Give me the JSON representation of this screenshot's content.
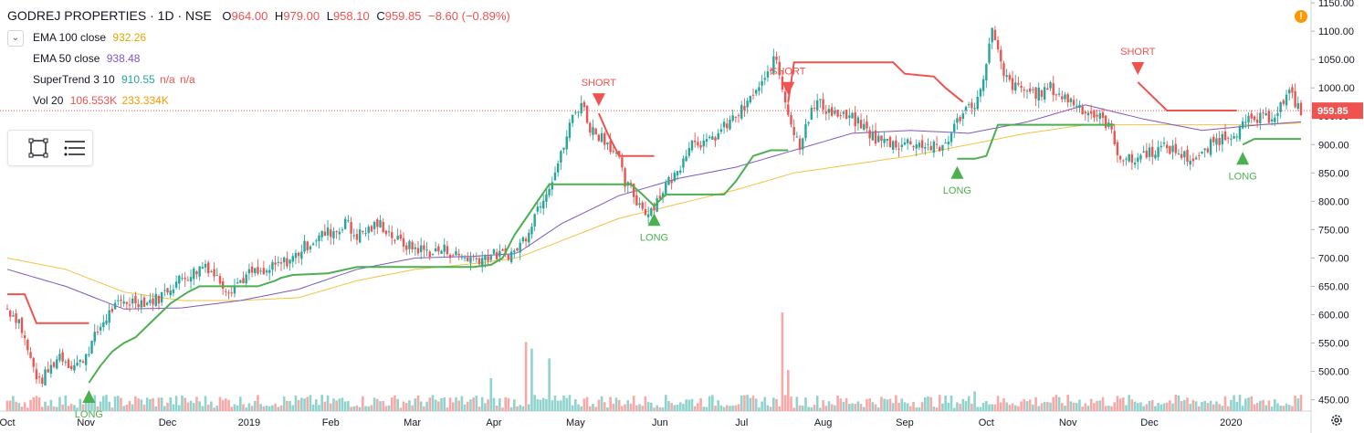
{
  "header": {
    "symbol": "GODREJ PROPERTIES · 1D · NSE",
    "open_label": "O",
    "open": "964.00",
    "high_label": "H",
    "high": "979.00",
    "low_label": "L",
    "low": "958.10",
    "close_label": "C",
    "close": "959.85",
    "change": "−8.60 (−0.89%)"
  },
  "indicators": [
    {
      "name": "EMA 100 close",
      "value": "932.26",
      "color": "#f5c242"
    },
    {
      "name": "EMA 50 close",
      "value": "938.48",
      "color": "#7e57c2"
    },
    {
      "name": "SuperTrend 3 10",
      "value": "910.55",
      "value2": "n/a",
      "value3": "n/a",
      "color": "#26a69a",
      "color2": "#ef5350"
    },
    {
      "name": "Vol 20",
      "value": "106.553K",
      "value2": "233.334K",
      "color": "#ef5350",
      "color2": "#ff9800"
    }
  ],
  "colors": {
    "up": "#26a69a",
    "down": "#ef5350",
    "vol_up": "#8fd3cc",
    "vol_down": "#f6a9a7",
    "st_up": "#4caf50",
    "st_down": "#ef5350",
    "ema100": "#f5c242",
    "ema50": "#7e57c2"
  },
  "icons": {
    "collapse": "chevron-down-icon",
    "tool1": "rectangle-select-icon",
    "tool2": "list-menu-icon",
    "warning": "warning-icon",
    "settings": "gear-icon"
  },
  "chart_data": {
    "type": "candlestick",
    "y_axis": {
      "ticks": [
        "1150.00",
        "1100.00",
        "1050.00",
        "1000.00",
        "950.00",
        "900.00",
        "850.00",
        "800.00",
        "750.00",
        "700.00",
        "650.00",
        "600.00",
        "550.00",
        "500.00",
        "450.00"
      ],
      "min": 430,
      "max": 1155
    },
    "last_price": "959.85",
    "x_axis": {
      "labels": [
        "Oct",
        "Nov",
        "Dec",
        "2019",
        "Feb",
        "Mar",
        "Apr",
        "May",
        "Jun",
        "Jul",
        "Aug",
        "Sep",
        "Oct",
        "Nov",
        "Dec",
        "2020"
      ]
    },
    "close_path": [
      [
        0,
        610
      ],
      [
        4,
        590
      ],
      [
        8,
        520
      ],
      [
        11,
        480
      ],
      [
        14,
        500
      ],
      [
        18,
        530
      ],
      [
        22,
        510
      ],
      [
        25,
        515
      ],
      [
        28,
        540
      ],
      [
        32,
        580
      ],
      [
        36,
        610
      ],
      [
        40,
        622
      ],
      [
        44,
        625
      ],
      [
        48,
        622
      ],
      [
        52,
        630
      ],
      [
        56,
        650
      ],
      [
        60,
        665
      ],
      [
        64,
        675
      ],
      [
        68,
        690
      ],
      [
        72,
        665
      ],
      [
        76,
        645
      ],
      [
        80,
        660
      ],
      [
        84,
        675
      ],
      [
        88,
        670
      ],
      [
        90,
        680
      ],
      [
        94,
        690
      ],
      [
        98,
        700
      ],
      [
        102,
        720
      ],
      [
        106,
        735
      ],
      [
        110,
        745
      ],
      [
        114,
        750
      ],
      [
        116,
        770
      ],
      [
        118,
        745
      ],
      [
        120,
        740
      ],
      [
        124,
        750
      ],
      [
        128,
        760
      ],
      [
        130,
        750
      ],
      [
        134,
        730
      ],
      [
        138,
        720
      ],
      [
        142,
        715
      ],
      [
        146,
        710
      ],
      [
        150,
        715
      ],
      [
        154,
        705
      ],
      [
        158,
        700
      ],
      [
        162,
        700
      ],
      [
        166,
        705
      ],
      [
        170,
        705
      ],
      [
        174,
        710
      ],
      [
        178,
        740
      ],
      [
        182,
        790
      ],
      [
        186,
        830
      ],
      [
        190,
        880
      ],
      [
        194,
        950
      ],
      [
        197,
        975
      ],
      [
        200,
        930
      ],
      [
        202,
        920
      ],
      [
        204,
        915
      ],
      [
        206,
        905
      ],
      [
        208,
        890
      ],
      [
        210,
        870
      ],
      [
        212,
        830
      ],
      [
        214,
        820
      ],
      [
        216,
        800
      ],
      [
        218,
        790
      ],
      [
        220,
        780
      ],
      [
        222,
        795
      ],
      [
        224,
        810
      ],
      [
        226,
        830
      ],
      [
        228,
        840
      ],
      [
        230,
        850
      ],
      [
        232,
        880
      ],
      [
        234,
        900
      ],
      [
        236,
        910
      ],
      [
        240,
        900
      ],
      [
        244,
        920
      ],
      [
        248,
        940
      ],
      [
        252,
        960
      ],
      [
        254,
        970
      ],
      [
        256,
        990
      ],
      [
        258,
        1000
      ],
      [
        260,
        1010
      ],
      [
        262,
        1040
      ],
      [
        264,
        1050
      ],
      [
        266,
        1000
      ],
      [
        268,
        960
      ],
      [
        270,
        920
      ],
      [
        272,
        900
      ],
      [
        274,
        940
      ],
      [
        278,
        975
      ],
      [
        282,
        960
      ],
      [
        286,
        950
      ],
      [
        290,
        945
      ],
      [
        294,
        930
      ],
      [
        298,
        910
      ],
      [
        302,
        905
      ],
      [
        306,
        900
      ],
      [
        310,
        905
      ],
      [
        314,
        900
      ],
      [
        318,
        895
      ],
      [
        320,
        890
      ],
      [
        324,
        920
      ],
      [
        328,
        960
      ],
      [
        332,
        975
      ],
      [
        334,
        990
      ],
      [
        336,
        1050
      ],
      [
        338,
        1100
      ],
      [
        340,
        1060
      ],
      [
        342,
        1020
      ],
      [
        346,
        1000
      ],
      [
        350,
        995
      ],
      [
        354,
        990
      ],
      [
        358,
        1000
      ],
      [
        362,
        985
      ],
      [
        366,
        975
      ],
      [
        370,
        960
      ],
      [
        374,
        950
      ],
      [
        378,
        935
      ],
      [
        380,
        900
      ],
      [
        382,
        880
      ],
      [
        386,
        870
      ],
      [
        390,
        885
      ],
      [
        394,
        890
      ],
      [
        398,
        895
      ],
      [
        402,
        885
      ],
      [
        406,
        875
      ],
      [
        410,
        880
      ],
      [
        414,
        905
      ],
      [
        418,
        915
      ],
      [
        422,
        925
      ],
      [
        426,
        940
      ],
      [
        430,
        945
      ],
      [
        434,
        950
      ],
      [
        438,
        975
      ],
      [
        440,
        990
      ],
      [
        442,
        975
      ],
      [
        444,
        960
      ]
    ],
    "ema100_path": [
      [
        0,
        700
      ],
      [
        20,
        680
      ],
      [
        40,
        640
      ],
      [
        60,
        625
      ],
      [
        80,
        625
      ],
      [
        100,
        630
      ],
      [
        120,
        660
      ],
      [
        140,
        680
      ],
      [
        160,
        690
      ],
      [
        175,
        700
      ],
      [
        190,
        730
      ],
      [
        210,
        770
      ],
      [
        230,
        795
      ],
      [
        250,
        820
      ],
      [
        270,
        850
      ],
      [
        290,
        865
      ],
      [
        310,
        880
      ],
      [
        330,
        900
      ],
      [
        350,
        920
      ],
      [
        370,
        935
      ],
      [
        390,
        935
      ],
      [
        410,
        935
      ],
      [
        430,
        935
      ],
      [
        444,
        938
      ]
    ],
    "ema50_path": [
      [
        0,
        680
      ],
      [
        20,
        650
      ],
      [
        40,
        610
      ],
      [
        60,
        612
      ],
      [
        80,
        625
      ],
      [
        100,
        645
      ],
      [
        120,
        680
      ],
      [
        140,
        700
      ],
      [
        160,
        703
      ],
      [
        175,
        708
      ],
      [
        190,
        760
      ],
      [
        210,
        810
      ],
      [
        230,
        840
      ],
      [
        250,
        860
      ],
      [
        270,
        890
      ],
      [
        290,
        920
      ],
      [
        310,
        925
      ],
      [
        330,
        920
      ],
      [
        350,
        940
      ],
      [
        370,
        970
      ],
      [
        390,
        945
      ],
      [
        410,
        925
      ],
      [
        430,
        935
      ],
      [
        444,
        940
      ]
    ],
    "supertrend_up_segments": [
      [
        [
          28,
          480
        ],
        [
          32,
          510
        ],
        [
          36,
          535
        ],
        [
          40,
          550
        ],
        [
          44,
          560
        ],
        [
          48,
          580
        ],
        [
          52,
          600
        ],
        [
          56,
          620
        ],
        [
          62,
          640
        ],
        [
          66,
          650
        ],
        [
          76,
          650
        ],
        [
          86,
          650
        ],
        [
          92,
          660
        ],
        [
          94,
          665
        ],
        [
          98,
          670
        ],
        [
          110,
          673
        ],
        [
          120,
          684
        ],
        [
          160,
          684
        ],
        [
          166,
          688
        ],
        [
          170,
          700
        ],
        [
          174,
          740
        ],
        [
          178,
          770
        ],
        [
          182,
          800
        ],
        [
          186,
          830
        ],
        [
          214,
          830
        ],
        [
          218,
          812
        ],
        [
          222,
          792
        ],
        [
          226,
          812
        ],
        [
          246,
          812
        ],
        [
          250,
          835
        ],
        [
          256,
          880
        ],
        [
          262,
          890
        ],
        [
          268,
          890
        ]
      ],
      [
        [
          326,
          875
        ],
        [
          332,
          875
        ],
        [
          336,
          880
        ],
        [
          340,
          935
        ],
        [
          380,
          935
        ]
      ],
      [
        [
          424,
          900
        ],
        [
          428,
          910
        ],
        [
          444,
          910
        ]
      ]
    ],
    "supertrend_down_segments": [
      [
        [
          0,
          636
        ],
        [
          6,
          636
        ],
        [
          10,
          585
        ],
        [
          28,
          585
        ]
      ],
      [
        [
          203,
          955
        ],
        [
          206,
          920
        ],
        [
          210,
          880
        ],
        [
          222,
          880
        ]
      ],
      [
        [
          268,
          975
        ],
        [
          270,
          1045
        ],
        [
          304,
          1045
        ],
        [
          308,
          1025
        ],
        [
          318,
          1020
        ],
        [
          322,
          1000
        ],
        [
          328,
          975
        ]
      ],
      [
        [
          388,
          1010
        ],
        [
          390,
          1000
        ],
        [
          398,
          960
        ],
        [
          422,
          960
        ]
      ]
    ],
    "signals": [
      {
        "label": "LONG",
        "x": 28,
        "y": 480,
        "dir": "up"
      },
      {
        "label": "SHORT",
        "x": 203,
        "y": 955,
        "dir": "down"
      },
      {
        "label": "LONG",
        "x": 222,
        "y": 792,
        "dir": "up"
      },
      {
        "label": "SHORT",
        "x": 268,
        "y": 975,
        "dir": "down"
      },
      {
        "label": "LONG",
        "x": 326,
        "y": 875,
        "dir": "up"
      },
      {
        "label": "SHORT",
        "x": 388,
        "y": 1010,
        "dir": "down"
      },
      {
        "label": "LONG",
        "x": 424,
        "y": 900,
        "dir": "up"
      }
    ],
    "volume_spikes": [
      {
        "x": 178,
        "v": 0.42
      },
      {
        "x": 180,
        "v": 0.38
      },
      {
        "x": 186,
        "v": 0.32
      },
      {
        "x": 266,
        "v": 0.6
      },
      {
        "x": 268,
        "v": 0.25
      },
      {
        "x": 166,
        "v": 0.2
      },
      {
        "x": 332,
        "v": 0.12
      }
    ]
  }
}
